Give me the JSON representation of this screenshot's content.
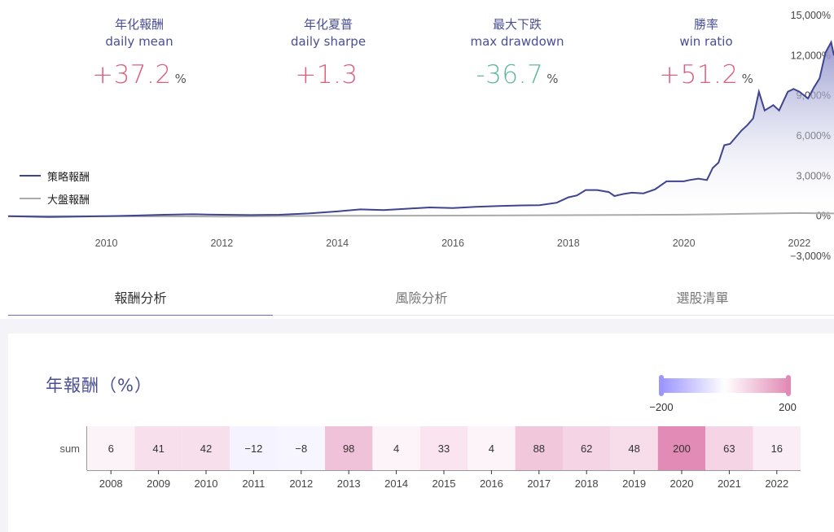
{
  "metrics": [
    {
      "title": "年化報酬",
      "sub": "daily mean",
      "value": "+37.2",
      "unit": "%",
      "tone": "pos"
    },
    {
      "title": "年化夏普",
      "sub": "daily sharpe",
      "value": "+1.3",
      "unit": "",
      "tone": "pos"
    },
    {
      "title": "最大下跌",
      "sub": "max drawdown",
      "value": "-36.7",
      "unit": "%",
      "tone": "neg"
    },
    {
      "title": "勝率",
      "sub": "win ratio",
      "value": "+51.2",
      "unit": "%",
      "tone": "pos"
    }
  ],
  "legend": {
    "strategy": "策略報酬",
    "market": "大盤報酬"
  },
  "tabs": [
    "報酬分析",
    "風險分析",
    "選股清單"
  ],
  "heatmap_title": "年報酬（%）",
  "colors": {
    "strategy_line": "#3f448f",
    "market_line": "#aaaaaa",
    "heat_pos": "#e28bb6",
    "heat_neg": "#9c96ff",
    "metric_pos": "#dd5f7f",
    "metric_neg": "#5fb89a"
  },
  "chart_data": [
    {
      "type": "area",
      "x_ticks": [
        "2010",
        "2012",
        "2014",
        "2016",
        "2018",
        "2020",
        "2022"
      ],
      "y_ticks": [
        "15,000%",
        "12,000%",
        "9,000%",
        "6,000%",
        "3,000%",
        "0%",
        "−3,000%"
      ],
      "ylim": [
        -3000,
        15000
      ],
      "xlim": [
        2008.3,
        2022.6
      ],
      "y_axis_position": "right",
      "legend_position": "left",
      "series": [
        {
          "name": "策略報酬",
          "x": [
            2008.3,
            2009.0,
            2009.5,
            2010.0,
            2010.5,
            2011.0,
            2011.5,
            2012.0,
            2012.5,
            2013.0,
            2013.5,
            2014.0,
            2014.4,
            2014.8,
            2015.2,
            2015.6,
            2016.0,
            2016.4,
            2016.8,
            2017.2,
            2017.5,
            2017.8,
            2018.0,
            2018.15,
            2018.3,
            2018.5,
            2018.7,
            2018.8,
            2018.95,
            2019.1,
            2019.3,
            2019.5,
            2019.7,
            2019.85,
            2020.0,
            2020.1,
            2020.25,
            2020.4,
            2020.5,
            2020.6,
            2020.7,
            2020.8,
            2021.0,
            2021.1,
            2021.2,
            2021.3,
            2021.4,
            2021.55,
            2021.65,
            2021.8,
            2021.9,
            2022.0,
            2022.15,
            2022.25,
            2022.35,
            2022.45,
            2022.55,
            2022.6
          ],
          "y": [
            0,
            -60,
            -30,
            0,
            40,
            100,
            140,
            100,
            80,
            100,
            200,
            350,
            500,
            450,
            550,
            650,
            600,
            700,
            750,
            800,
            820,
            1000,
            1400,
            1550,
            1950,
            1950,
            1800,
            1500,
            1650,
            1750,
            1700,
            2000,
            2600,
            2600,
            2600,
            2700,
            2800,
            2700,
            3600,
            4000,
            5300,
            5400,
            6400,
            6800,
            7300,
            9300,
            7900,
            8300,
            7900,
            9300,
            9500,
            9300,
            8800,
            9600,
            10300,
            12200,
            13000,
            12000
          ]
        },
        {
          "name": "大盤報酬",
          "x": [
            2008.3,
            2010.0,
            2012.0,
            2014.0,
            2016.0,
            2018.0,
            2019.0,
            2020.0,
            2021.0,
            2022.0,
            2022.6
          ],
          "y": [
            0,
            -10,
            -30,
            30,
            40,
            70,
            90,
            110,
            170,
            230,
            200
          ]
        }
      ]
    },
    {
      "type": "heatmap",
      "title": "年報酬（%）",
      "row_label": "sum",
      "categories": [
        "2008",
        "2009",
        "2010",
        "2011",
        "2012",
        "2013",
        "2014",
        "2015",
        "2016",
        "2017",
        "2018",
        "2019",
        "2020",
        "2021",
        "2022"
      ],
      "values": [
        6,
        41,
        42,
        -12,
        -8,
        98,
        4,
        33,
        4,
        88,
        62,
        48,
        200,
        63,
        16
      ],
      "value_labels": [
        "6",
        "41",
        "42",
        "−12",
        "−8",
        "98",
        "4",
        "33",
        "4",
        "88",
        "62",
        "48",
        "200",
        "63",
        "16"
      ],
      "color_range": [
        -200,
        200
      ],
      "color_min_label": "−200",
      "color_max_label": "200"
    }
  ]
}
